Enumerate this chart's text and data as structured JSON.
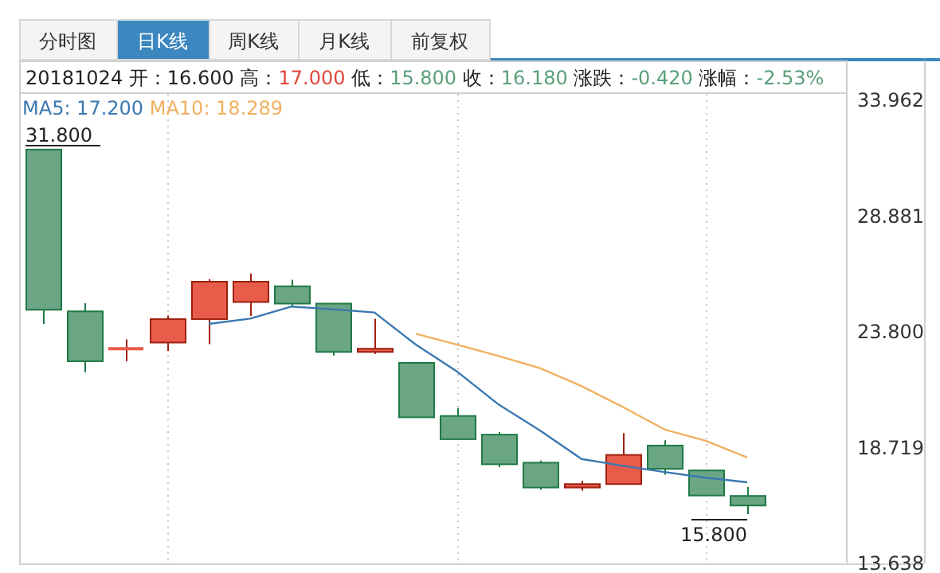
{
  "chart_data": {
    "type": "candlestick",
    "categories": [
      null,
      null,
      null,
      null,
      null,
      null,
      null,
      null,
      null,
      null,
      null,
      null,
      null,
      null,
      null,
      null,
      null,
      null
    ],
    "ohlc": [
      [
        31.8,
        31.8,
        24.15,
        24.77
      ],
      [
        24.7,
        25.06,
        22.03,
        22.51
      ],
      [
        23.06,
        23.47,
        22.51,
        23.06
      ],
      [
        23.33,
        24.52,
        22.96,
        24.36
      ],
      [
        24.36,
        26.11,
        23.26,
        26.0
      ],
      [
        25.11,
        26.36,
        24.5,
        26.0
      ],
      [
        25.8,
        26.09,
        24.88,
        25.04
      ],
      [
        25.04,
        25.04,
        22.76,
        22.92
      ],
      [
        22.92,
        24.38,
        22.83,
        23.06
      ],
      [
        22.44,
        22.44,
        20.05,
        20.05
      ],
      [
        20.11,
        20.46,
        19.09,
        19.09
      ],
      [
        19.29,
        19.4,
        17.86,
        17.99
      ],
      [
        18.06,
        18.15,
        16.87,
        16.97
      ],
      [
        16.97,
        17.26,
        16.83,
        17.12
      ],
      [
        17.12,
        19.36,
        17.12,
        18.4
      ],
      [
        18.81,
        19.04,
        17.53,
        17.79
      ],
      [
        17.72,
        17.72,
        16.62,
        16.62
      ],
      [
        16.6,
        17.0,
        15.8,
        16.18
      ]
    ],
    "colors": [
      "#6aa584",
      "#6aa584",
      "#e85c4a",
      "#e85c4a",
      "#e85c4a",
      "#e85c4a",
      "#6aa584",
      "#6aa584",
      "#e85c4a",
      "#6aa584",
      "#6aa584",
      "#6aa584",
      "#6aa584",
      "#e85c4a",
      "#e85c4a",
      "#6aa584",
      "#6aa584",
      "#6aa584"
    ],
    "series": [
      {
        "name": "MA5: 17.200",
        "type": "line",
        "color": "#3a78b0",
        "values": [
          null,
          null,
          null,
          null,
          24.15,
          24.38,
          24.91,
          24.79,
          24.65,
          23.24,
          22.05,
          20.61,
          19.47,
          18.22,
          17.92,
          17.65,
          17.4,
          17.2
        ]
      },
      {
        "name": "MA10: 18.289",
        "type": "line",
        "color": "#f0b060",
        "values": [
          null,
          null,
          null,
          null,
          null,
          null,
          null,
          null,
          null,
          23.72,
          23.24,
          22.74,
          22.21,
          21.42,
          20.5,
          19.52,
          19.02,
          18.289
        ]
      }
    ],
    "ylim": [
      13.638,
      33.962
    ],
    "yticks": [
      {
        "value": 33.962,
        "label": "33.962"
      },
      {
        "value": 28.881,
        "label": "28.881"
      },
      {
        "value": 23.8,
        "label": "23.800"
      },
      {
        "value": 18.719,
        "label": "18.719"
      },
      {
        "value": 13.638,
        "label": "13.638"
      }
    ],
    "legend": "top left",
    "grid": "x",
    "annotations": [
      "分时图",
      "日K线",
      "周K线",
      "月K线",
      "前复权",
      "20181024",
      "开：",
      "16.600",
      "高：",
      "17.000",
      "低：",
      "15.800",
      "收：",
      "16.180",
      "涨跌：",
      "-0.420",
      "涨幅：",
      "-2.53%",
      "31.800",
      "15.800"
    ]
  }
}
